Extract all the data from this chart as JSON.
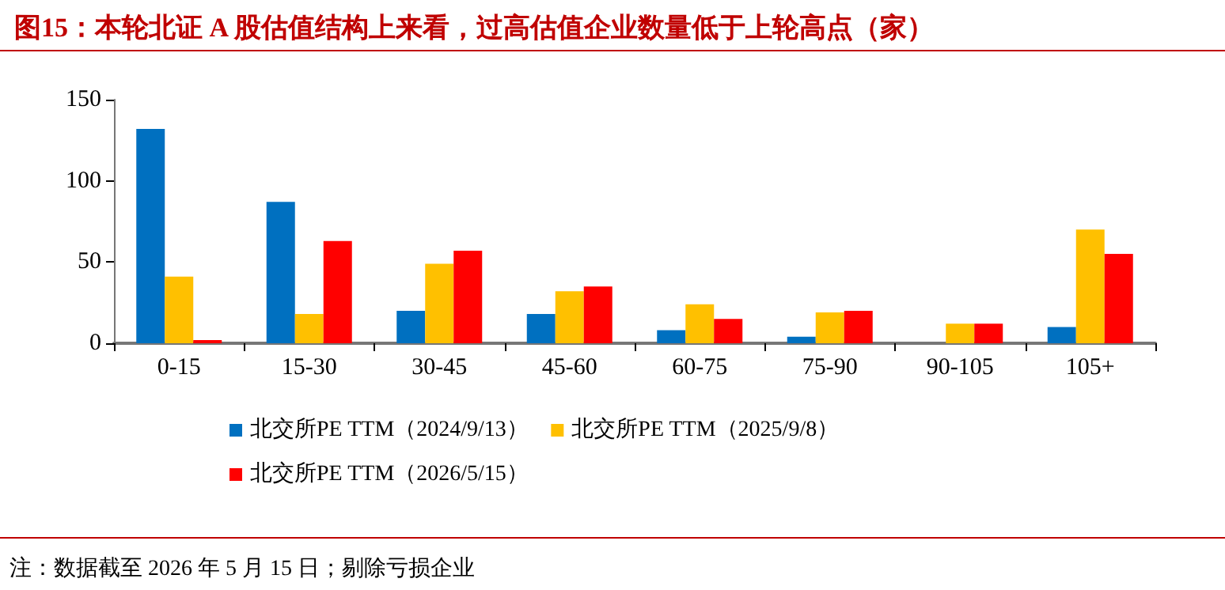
{
  "chart_data": {
    "type": "bar",
    "title": "图15：本轮北证 A 股估值结构上来看，过高估值企业数量低于上轮高点（家）",
    "categories": [
      "0-15",
      "15-30",
      "30-45",
      "45-60",
      "60-75",
      "75-90",
      "90-105",
      "105+"
    ],
    "series": [
      {
        "name": "北交所PE TTM（2024/9/13）",
        "color": "#0070c0",
        "values": [
          132,
          87,
          20,
          18,
          8,
          4,
          0,
          10
        ]
      },
      {
        "name": "北交所PE TTM（2025/9/8）",
        "color": "#ffc000",
        "values": [
          41,
          18,
          49,
          32,
          24,
          19,
          12,
          70
        ]
      },
      {
        "name": "北交所PE TTM（2026/5/15）",
        "color": "#ff0000",
        "values": [
          2,
          63,
          57,
          35,
          15,
          20,
          12,
          55
        ]
      }
    ],
    "ylim": [
      0,
      150
    ],
    "yticks": [
      0,
      50,
      100,
      150
    ],
    "grid": false,
    "legend": "bottom",
    "annotations": [
      "注：数据截至 2026 年 5 月 15 日；剔除亏损企业"
    ]
  }
}
